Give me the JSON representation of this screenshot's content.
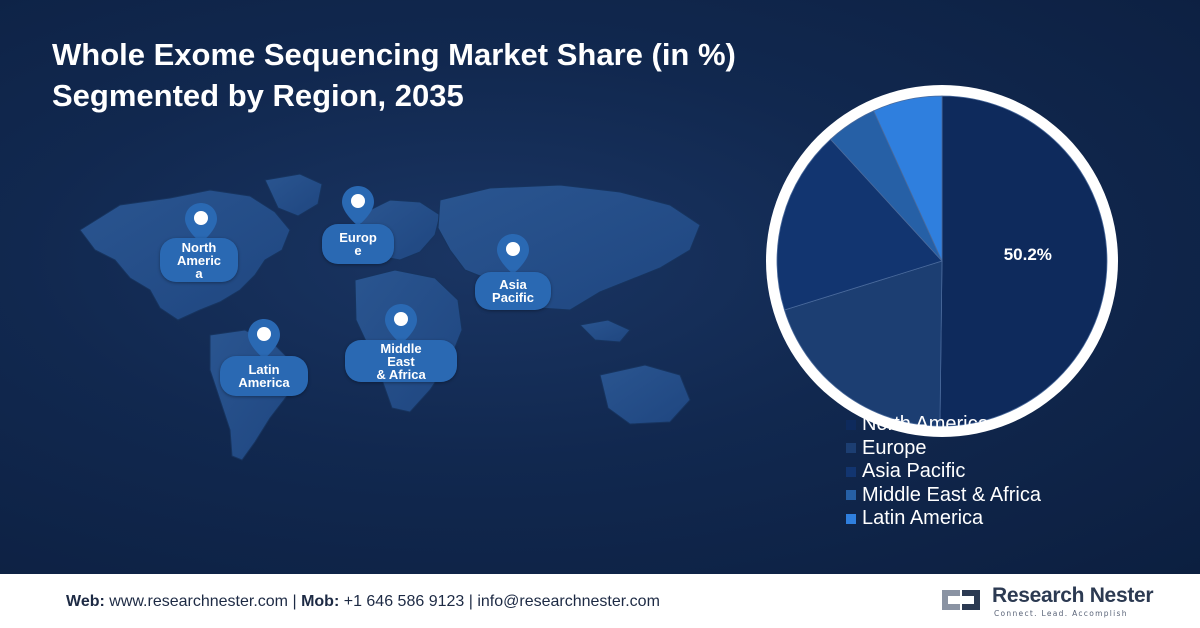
{
  "title": {
    "line1": "Whole Exome Sequencing Market Share (in %)",
    "line2": "Segmented by Region, 2035"
  },
  "map": {
    "markers": [
      {
        "id": "north-america",
        "label": "North\nAmeric\na"
      },
      {
        "id": "europe",
        "label": "Europ\ne"
      },
      {
        "id": "asia-pacific",
        "label": "Asia\nPacific"
      },
      {
        "id": "latin-america",
        "label": "Latin\nAmerica"
      },
      {
        "id": "middle-east-africa",
        "label": "Middle\nEast\n& Africa"
      }
    ]
  },
  "chart_data": {
    "type": "pie",
    "title": "Whole Exome Sequencing Market Share (in %) Segmented by Region, 2035",
    "categories": [
      "North America",
      "Europe",
      "Asia Pacific",
      "Middle East & Africa",
      "Latin America"
    ],
    "values": [
      50.2,
      20.0,
      18.0,
      5.0,
      6.8
    ],
    "colors": [
      "#0e2a5c",
      "#1c3e72",
      "#123570",
      "#2660a6",
      "#2f7fde"
    ],
    "data_labels": [
      "50.2%",
      "",
      "",
      "",
      ""
    ],
    "legend_position": "bottom-right"
  },
  "footer": {
    "web_label": "Web:",
    "web_value": "www.researchnester.com",
    "mob_label": "Mob:",
    "mob_value": "+1 646 586 9123",
    "email": "info@researchnester.com",
    "separator": "|",
    "brand_name": "Research Nester",
    "brand_tagline": "Connect. Lead. Accomplish"
  }
}
